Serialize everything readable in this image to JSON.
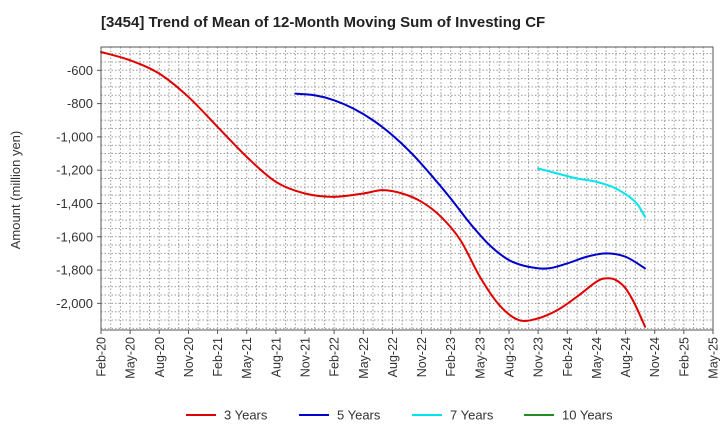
{
  "chart_data": {
    "type": "line",
    "title": "[3454]  Trend of Mean of 12-Month Moving Sum of Investing CF",
    "xlabel": "",
    "ylabel": "Amount (million yen)",
    "ylim": [
      -2160,
      -460
    ],
    "yticks": [
      -600,
      -800,
      -1000,
      -1200,
      -1400,
      -1600,
      -1800,
      -2000
    ],
    "ytick_labels": [
      "-600",
      "-800",
      "-1,000",
      "-1,200",
      "-1,400",
      "-1,600",
      "-1,800",
      "-2,000"
    ],
    "x_start": "Feb-20",
    "x_months": 63,
    "x_tick_labels": [
      "Feb-20",
      "May-20",
      "Aug-20",
      "Nov-20",
      "Feb-21",
      "May-21",
      "Aug-21",
      "Nov-21",
      "Feb-22",
      "May-22",
      "Aug-22",
      "Nov-22",
      "Feb-23",
      "May-23",
      "Aug-23",
      "Nov-23",
      "Feb-24",
      "May-24",
      "Aug-24",
      "Nov-24",
      "Feb-25",
      "May-25"
    ],
    "grid": true,
    "legend_position": "bottom",
    "series": [
      {
        "name": "3 Years",
        "color": "#e00000",
        "points": [
          [
            0,
            -490
          ],
          [
            3,
            -540
          ],
          [
            6,
            -620
          ],
          [
            9,
            -760
          ],
          [
            12,
            -940
          ],
          [
            15,
            -1120
          ],
          [
            18,
            -1270
          ],
          [
            21,
            -1340
          ],
          [
            24,
            -1360
          ],
          [
            27,
            -1340
          ],
          [
            29,
            -1320
          ],
          [
            31,
            -1340
          ],
          [
            33,
            -1390
          ],
          [
            35,
            -1480
          ],
          [
            37,
            -1620
          ],
          [
            39,
            -1840
          ],
          [
            41,
            -2010
          ],
          [
            43,
            -2100
          ],
          [
            45,
            -2090
          ],
          [
            47,
            -2040
          ],
          [
            49,
            -1960
          ],
          [
            51,
            -1870
          ],
          [
            52,
            -1850
          ],
          [
            53,
            -1860
          ],
          [
            54,
            -1910
          ],
          [
            55,
            -2010
          ],
          [
            56,
            -2140
          ]
        ]
      },
      {
        "name": "5 Years",
        "color": "#0000cc",
        "points": [
          [
            20,
            -740
          ],
          [
            22,
            -750
          ],
          [
            24,
            -780
          ],
          [
            26,
            -830
          ],
          [
            28,
            -900
          ],
          [
            30,
            -990
          ],
          [
            32,
            -1100
          ],
          [
            34,
            -1230
          ],
          [
            36,
            -1370
          ],
          [
            38,
            -1520
          ],
          [
            40,
            -1650
          ],
          [
            42,
            -1740
          ],
          [
            44,
            -1780
          ],
          [
            46,
            -1790
          ],
          [
            48,
            -1760
          ],
          [
            50,
            -1720
          ],
          [
            52,
            -1700
          ],
          [
            54,
            -1720
          ],
          [
            56,
            -1790
          ]
        ]
      },
      {
        "name": "7 Years",
        "color": "#00e5ee",
        "points": [
          [
            45,
            -1190
          ],
          [
            47,
            -1220
          ],
          [
            49,
            -1250
          ],
          [
            51,
            -1270
          ],
          [
            53,
            -1310
          ],
          [
            55,
            -1390
          ],
          [
            56,
            -1480
          ]
        ]
      },
      {
        "name": "10 Years",
        "color": "#228b22",
        "points": []
      }
    ]
  }
}
